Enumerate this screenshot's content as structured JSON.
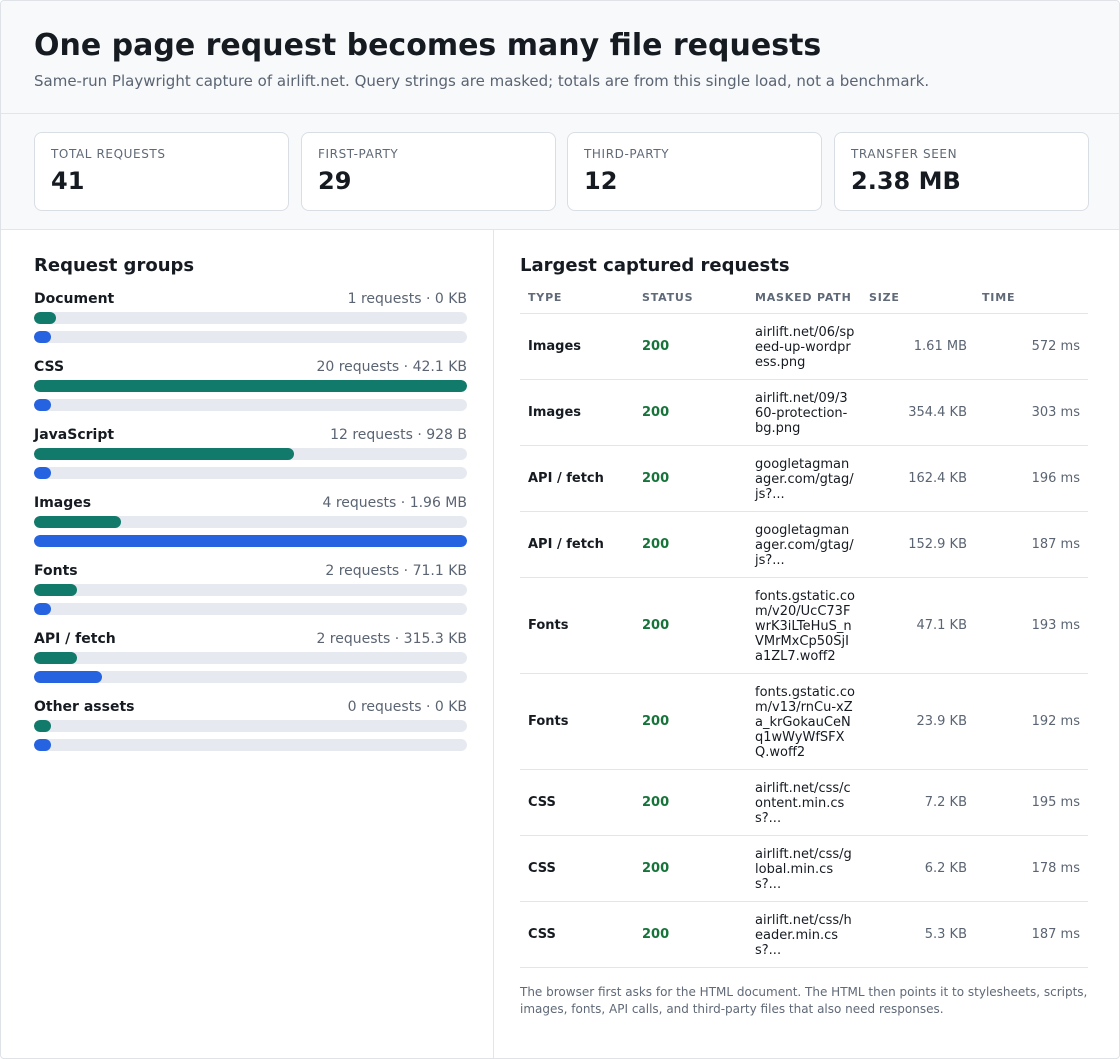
{
  "header": {
    "title": "One page request becomes many file requests",
    "subtitle": "Same-run Playwright capture of airlift.net. Query strings are masked; totals are from this single load, not a benchmark."
  },
  "stats": [
    {
      "label": "TOTAL REQUESTS",
      "value": "41"
    },
    {
      "label": "FIRST-PARTY",
      "value": "29"
    },
    {
      "label": "THIRD-PARTY",
      "value": "12"
    },
    {
      "label": "TRANSFER SEEN",
      "value": "2.38 MB"
    }
  ],
  "groups_panel": {
    "title": "Request groups",
    "groups": [
      {
        "name": "Document",
        "meta": "1 requests · 0 KB",
        "count_share": 0.05,
        "bytes_share": 0.0
      },
      {
        "name": "CSS",
        "meta": "20 requests · 42.1 KB",
        "count_share": 1.0,
        "bytes_share": 0.021
      },
      {
        "name": "JavaScript",
        "meta": "12 requests · 928 B",
        "count_share": 0.6,
        "bytes_share": 0.0005
      },
      {
        "name": "Images",
        "meta": "4 requests · 1.96 MB",
        "count_share": 0.2,
        "bytes_share": 1.0
      },
      {
        "name": "Fonts",
        "meta": "2 requests · 71.1 KB",
        "count_share": 0.1,
        "bytes_share": 0.035
      },
      {
        "name": "API / fetch",
        "meta": "2 requests · 315.3 KB",
        "count_share": 0.1,
        "bytes_share": 0.157
      },
      {
        "name": "Other assets",
        "meta": "0 requests · 0 KB",
        "count_share": 0.0,
        "bytes_share": 0.0
      }
    ]
  },
  "requests_panel": {
    "title": "Largest captured requests",
    "columns": {
      "type": "TYPE",
      "status": "STATUS",
      "path": "MASKED PATH",
      "size": "SIZE",
      "time": "TIME"
    },
    "rows": [
      {
        "type": "Images",
        "status": "200",
        "path": "airlift.net/06/speed-up-wordpress.png",
        "size": "1.61 MB",
        "time": "572 ms"
      },
      {
        "type": "Images",
        "status": "200",
        "path": "airlift.net/09/360-protection-bg.png",
        "size": "354.4 KB",
        "time": "303 ms"
      },
      {
        "type": "API / fetch",
        "status": "200",
        "path": "googletagmanager.com/gtag/js?...",
        "size": "162.4 KB",
        "time": "196 ms"
      },
      {
        "type": "API / fetch",
        "status": "200",
        "path": "googletagmanager.com/gtag/js?...",
        "size": "152.9 KB",
        "time": "187 ms"
      },
      {
        "type": "Fonts",
        "status": "200",
        "path": "fonts.gstatic.com/v20/UcC73FwrK3iLTeHuS_nVMrMxCp50SjIa1ZL7.woff2",
        "size": "47.1 KB",
        "time": "193 ms"
      },
      {
        "type": "Fonts",
        "status": "200",
        "path": "fonts.gstatic.com/v13/rnCu-xZa_krGokauCeNq1wWyWfSFXQ.woff2",
        "size": "23.9 KB",
        "time": "192 ms"
      },
      {
        "type": "CSS",
        "status": "200",
        "path": "airlift.net/css/content.min.css?...",
        "size": "7.2 KB",
        "time": "195 ms"
      },
      {
        "type": "CSS",
        "status": "200",
        "path": "airlift.net/css/global.min.css?...",
        "size": "6.2 KB",
        "time": "178 ms"
      },
      {
        "type": "CSS",
        "status": "200",
        "path": "airlift.net/css/header.min.css?...",
        "size": "5.3 KB",
        "time": "187 ms"
      }
    ],
    "note": "The browser first asks for the HTML document. The HTML then points it to stylesheets, scripts, images, fonts, API calls, and third-party files that also need responses."
  },
  "colors": {
    "count_bar": "#127a6b",
    "bytes_bar": "#2563e0",
    "status_ok": "#16733a"
  }
}
